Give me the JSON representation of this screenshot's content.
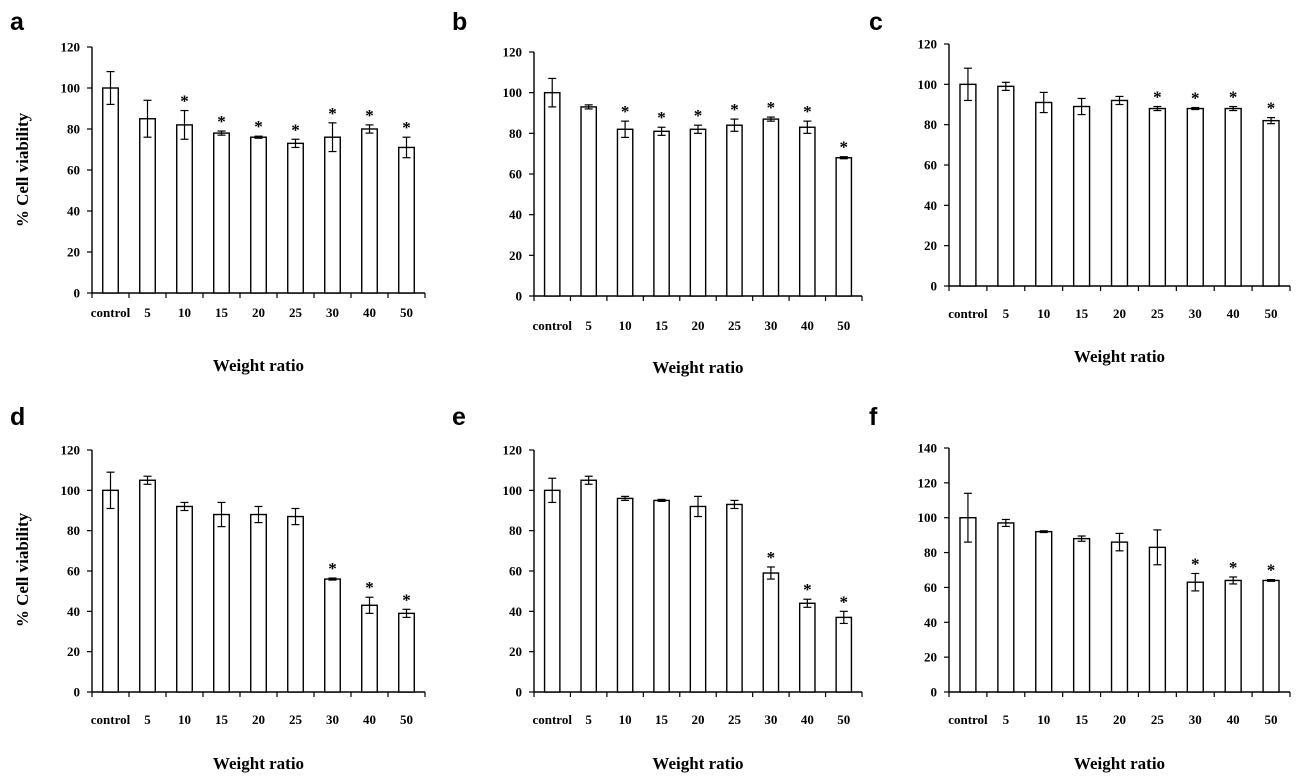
{
  "chart_data": [
    {
      "panel": "a",
      "type": "bar",
      "categories": [
        "control",
        "5",
        "10",
        "15",
        "20",
        "25",
        "30",
        "40",
        "50"
      ],
      "values": [
        100,
        85,
        82,
        78,
        76,
        73,
        76,
        80,
        71
      ],
      "errors": [
        8,
        9,
        7,
        1,
        0.5,
        2,
        7,
        2,
        5
      ],
      "significant": [
        false,
        false,
        true,
        true,
        true,
        true,
        true,
        true,
        true
      ],
      "significance_marker": "*",
      "xlabel": "Weight ratio",
      "ylabel": "% Cell viability",
      "ylim": [
        0,
        120
      ],
      "yticks": [
        0,
        20,
        40,
        60,
        80,
        100,
        120
      ],
      "grid": false
    },
    {
      "panel": "b",
      "type": "bar",
      "categories": [
        "control",
        "5",
        "10",
        "15",
        "20",
        "25",
        "30",
        "40",
        "50"
      ],
      "values": [
        100,
        93,
        82,
        81,
        82,
        84,
        87,
        83,
        68
      ],
      "errors": [
        7,
        1,
        4,
        2,
        2,
        3,
        1,
        3,
        0.5
      ],
      "significant": [
        false,
        false,
        true,
        true,
        true,
        true,
        true,
        true,
        true
      ],
      "significance_marker": "*",
      "xlabel": "Weight ratio",
      "ylabel": "",
      "ylim": [
        0,
        120
      ],
      "yticks": [
        0,
        20,
        40,
        60,
        80,
        100,
        120
      ],
      "grid": false
    },
    {
      "panel": "c",
      "type": "bar",
      "categories": [
        "control",
        "5",
        "10",
        "15",
        "20",
        "25",
        "30",
        "40",
        "50"
      ],
      "values": [
        100,
        99,
        91,
        89,
        92,
        88,
        88,
        88,
        82
      ],
      "errors": [
        8,
        2,
        5,
        4,
        2,
        1,
        0.5,
        1,
        1.5
      ],
      "significant": [
        false,
        false,
        false,
        false,
        false,
        true,
        true,
        true,
        true
      ],
      "significance_marker": "*",
      "xlabel": "Weight ratio",
      "ylabel": "",
      "ylim": [
        0,
        120
      ],
      "yticks": [
        0,
        20,
        40,
        60,
        80,
        100,
        120
      ],
      "grid": false
    },
    {
      "panel": "d",
      "type": "bar",
      "categories": [
        "control",
        "5",
        "10",
        "15",
        "20",
        "25",
        "30",
        "40",
        "50"
      ],
      "values": [
        100,
        105,
        92,
        88,
        88,
        87,
        56,
        43,
        39
      ],
      "errors": [
        9,
        2,
        2,
        6,
        4,
        4,
        0.5,
        4,
        2
      ],
      "significant": [
        false,
        false,
        false,
        false,
        false,
        false,
        true,
        true,
        true
      ],
      "significance_marker": "*",
      "xlabel": "Weight ratio",
      "ylabel": "% Cell viability",
      "ylim": [
        0,
        120
      ],
      "yticks": [
        0,
        20,
        40,
        60,
        80,
        100,
        120
      ],
      "grid": false
    },
    {
      "panel": "e",
      "type": "bar",
      "categories": [
        "control",
        "5",
        "10",
        "15",
        "20",
        "25",
        "30",
        "40",
        "50"
      ],
      "values": [
        100,
        105,
        96,
        95,
        92,
        93,
        59,
        44,
        37
      ],
      "errors": [
        6,
        2,
        1,
        0.5,
        5,
        2,
        3,
        2,
        3
      ],
      "significant": [
        false,
        false,
        false,
        false,
        false,
        false,
        true,
        true,
        true
      ],
      "significance_marker": "*",
      "xlabel": "Weight ratio",
      "ylabel": "",
      "ylim": [
        0,
        120
      ],
      "yticks": [
        0,
        20,
        40,
        60,
        80,
        100,
        120
      ],
      "grid": false
    },
    {
      "panel": "f",
      "type": "bar",
      "categories": [
        "control",
        "5",
        "10",
        "15",
        "20",
        "25",
        "30",
        "40",
        "50"
      ],
      "values": [
        100,
        97,
        92,
        88,
        86,
        83,
        63,
        64,
        64
      ],
      "errors": [
        14,
        2,
        0.5,
        1.5,
        5,
        10,
        5,
        2,
        0.5
      ],
      "significant": [
        false,
        false,
        false,
        false,
        false,
        false,
        true,
        true,
        true
      ],
      "significance_marker": "*",
      "xlabel": "Weight ratio",
      "ylabel": "",
      "ylim": [
        0,
        140
      ],
      "yticks": [
        0,
        20,
        40,
        60,
        80,
        100,
        120,
        140
      ],
      "grid": false
    }
  ]
}
